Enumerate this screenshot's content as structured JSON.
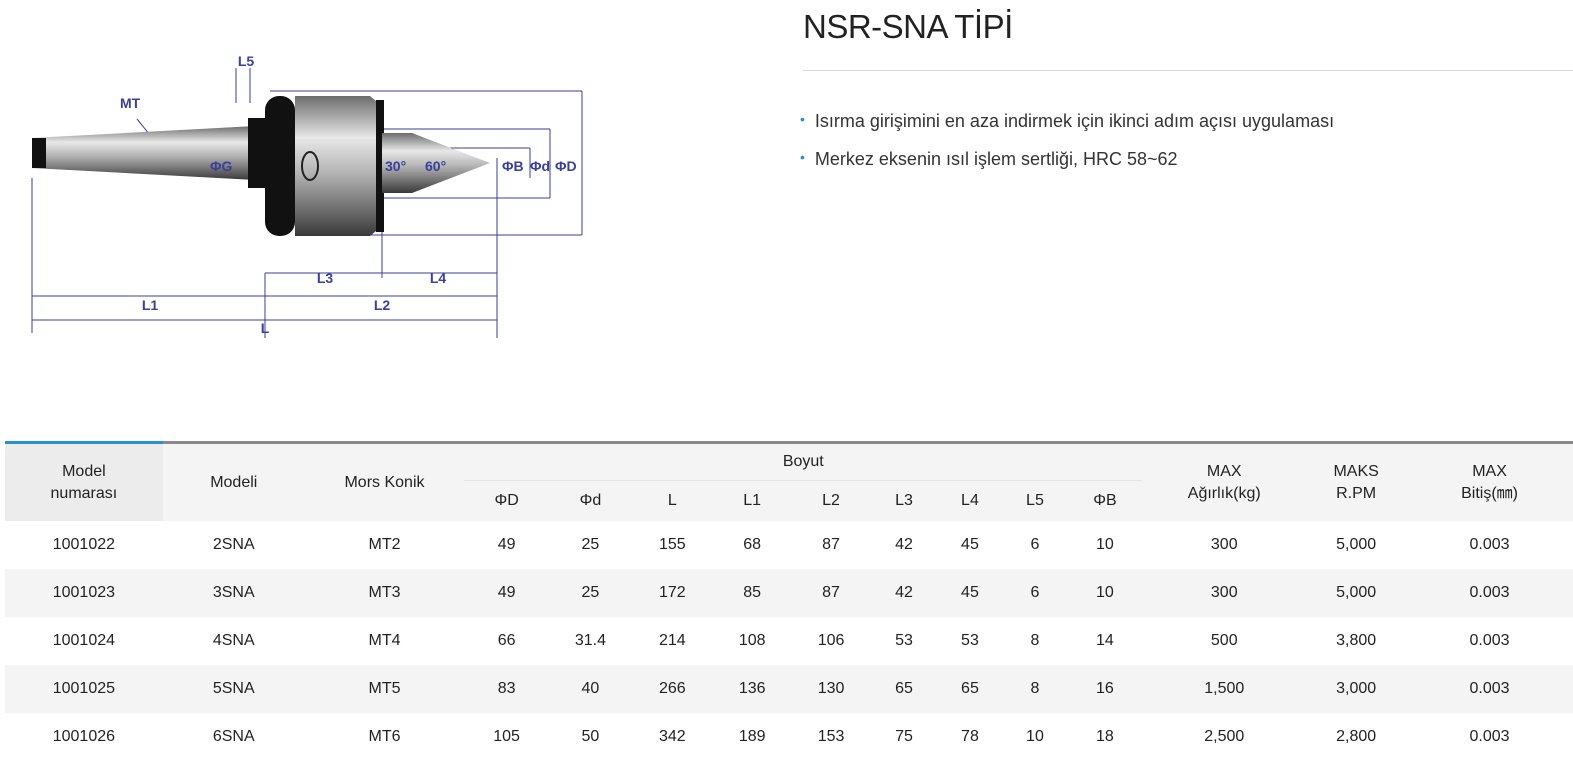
{
  "title": "NSR-SNA TİPİ",
  "features": [
    "Isırma girişimini en aza indirmek için ikinci adım açısı uygulaması",
    "Merkez eksenin ısıl işlem sertliği, HRC 58~62"
  ],
  "drawing_labels": {
    "mt": "MT",
    "l5": "L5",
    "g": "ΦG",
    "a30": "30°",
    "a60": "60°",
    "b": "ΦB",
    "d": "Φd",
    "D": "ΦD",
    "l1": "L1",
    "l2": "L2",
    "l3": "L3",
    "l4": "L4",
    "l": "L"
  },
  "table": {
    "headers": {
      "model_no": "Model numarası",
      "model": "Modeli",
      "morse": "Mors Konik",
      "boyut": "Boyut",
      "dims": [
        "ΦD",
        "Φd",
        "L",
        "L1",
        "L2",
        "L3",
        "L4",
        "L5",
        "ΦB"
      ],
      "max_weight": "MAX Ağırlık(kg)",
      "max_rpm": "MAKS R.PM",
      "max_finish": "MAX Bitiş(㎜)"
    },
    "rows": [
      [
        "1001022",
        "2SNA",
        "MT2",
        "49",
        "25",
        "155",
        "68",
        "87",
        "42",
        "45",
        "6",
        "10",
        "300",
        "5,000",
        "0.003"
      ],
      [
        "1001023",
        "3SNA",
        "MT3",
        "49",
        "25",
        "172",
        "85",
        "87",
        "42",
        "45",
        "6",
        "10",
        "300",
        "5,000",
        "0.003"
      ],
      [
        "1001024",
        "4SNA",
        "MT4",
        "66",
        "31.4",
        "214",
        "108",
        "106",
        "53",
        "53",
        "8",
        "14",
        "500",
        "3,800",
        "0.003"
      ],
      [
        "1001025",
        "5SNA",
        "MT5",
        "83",
        "40",
        "266",
        "136",
        "130",
        "65",
        "65",
        "8",
        "16",
        "1,500",
        "3,000",
        "0.003"
      ],
      [
        "1001026",
        "6SNA",
        "MT6",
        "105",
        "50",
        "342",
        "189",
        "153",
        "75",
        "78",
        "10",
        "18",
        "2,500",
        "2,800",
        "0.003"
      ]
    ]
  },
  "colors": {
    "accent": "#2a8fd0",
    "dimension": "#3a3f9a"
  }
}
